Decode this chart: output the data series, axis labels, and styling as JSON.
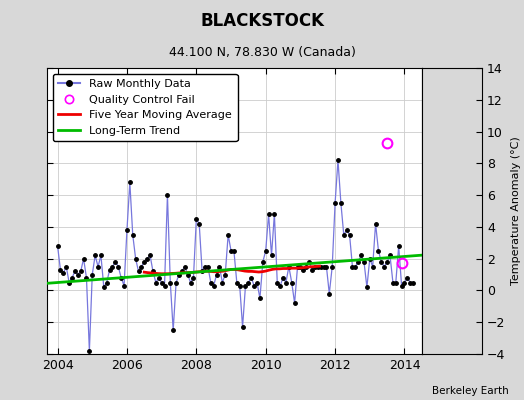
{
  "title": "BLACKSTOCK",
  "subtitle": "44.100 N, 78.830 W (Canada)",
  "ylabel": "Temperature Anomaly (°C)",
  "attribution": "Berkeley Earth",
  "ylim": [
    -4,
    14
  ],
  "xlim": [
    2003.7,
    2014.5
  ],
  "yticks": [
    -4,
    -2,
    0,
    2,
    4,
    6,
    8,
    10,
    12,
    14
  ],
  "xticks": [
    2004,
    2006,
    2008,
    2010,
    2012,
    2014
  ],
  "bg_color": "#d8d8d8",
  "plot_bg_color": "#ffffff",
  "right_strip_color": "#d8d8d8",
  "raw_data": [
    [
      2004.0,
      2.8
    ],
    [
      2004.083,
      1.3
    ],
    [
      2004.167,
      1.1
    ],
    [
      2004.25,
      1.5
    ],
    [
      2004.333,
      0.5
    ],
    [
      2004.417,
      0.8
    ],
    [
      2004.5,
      1.2
    ],
    [
      2004.583,
      1.0
    ],
    [
      2004.667,
      1.2
    ],
    [
      2004.75,
      2.0
    ],
    [
      2004.833,
      0.8
    ],
    [
      2004.917,
      -3.8
    ],
    [
      2005.0,
      1.0
    ],
    [
      2005.083,
      2.2
    ],
    [
      2005.167,
      1.5
    ],
    [
      2005.25,
      2.2
    ],
    [
      2005.333,
      0.2
    ],
    [
      2005.417,
      0.5
    ],
    [
      2005.5,
      1.3
    ],
    [
      2005.583,
      1.5
    ],
    [
      2005.667,
      1.8
    ],
    [
      2005.75,
      1.5
    ],
    [
      2005.833,
      0.8
    ],
    [
      2005.917,
      0.3
    ],
    [
      2006.0,
      3.8
    ],
    [
      2006.083,
      6.8
    ],
    [
      2006.167,
      3.5
    ],
    [
      2006.25,
      2.0
    ],
    [
      2006.333,
      1.2
    ],
    [
      2006.417,
      1.5
    ],
    [
      2006.5,
      1.8
    ],
    [
      2006.583,
      2.0
    ],
    [
      2006.667,
      2.2
    ],
    [
      2006.75,
      1.2
    ],
    [
      2006.833,
      0.5
    ],
    [
      2006.917,
      0.8
    ],
    [
      2007.0,
      0.5
    ],
    [
      2007.083,
      0.3
    ],
    [
      2007.167,
      6.0
    ],
    [
      2007.25,
      0.5
    ],
    [
      2007.333,
      -2.5
    ],
    [
      2007.417,
      0.5
    ],
    [
      2007.5,
      1.0
    ],
    [
      2007.583,
      1.2
    ],
    [
      2007.667,
      1.5
    ],
    [
      2007.75,
      1.0
    ],
    [
      2007.833,
      0.5
    ],
    [
      2007.917,
      0.8
    ],
    [
      2008.0,
      4.5
    ],
    [
      2008.083,
      4.2
    ],
    [
      2008.167,
      1.2
    ],
    [
      2008.25,
      1.5
    ],
    [
      2008.333,
      1.5
    ],
    [
      2008.417,
      0.5
    ],
    [
      2008.5,
      0.3
    ],
    [
      2008.583,
      1.0
    ],
    [
      2008.667,
      1.5
    ],
    [
      2008.75,
      0.5
    ],
    [
      2008.833,
      1.0
    ],
    [
      2008.917,
      3.5
    ],
    [
      2009.0,
      2.5
    ],
    [
      2009.083,
      2.5
    ],
    [
      2009.167,
      0.5
    ],
    [
      2009.25,
      0.3
    ],
    [
      2009.333,
      -2.3
    ],
    [
      2009.417,
      0.3
    ],
    [
      2009.5,
      0.5
    ],
    [
      2009.583,
      0.8
    ],
    [
      2009.667,
      0.3
    ],
    [
      2009.75,
      0.5
    ],
    [
      2009.833,
      -0.5
    ],
    [
      2009.917,
      1.8
    ],
    [
      2010.0,
      2.5
    ],
    [
      2010.083,
      4.8
    ],
    [
      2010.167,
      2.2
    ],
    [
      2010.25,
      4.8
    ],
    [
      2010.333,
      0.5
    ],
    [
      2010.417,
      0.3
    ],
    [
      2010.5,
      0.8
    ],
    [
      2010.583,
      0.5
    ],
    [
      2010.667,
      1.5
    ],
    [
      2010.75,
      0.5
    ],
    [
      2010.833,
      -0.8
    ],
    [
      2010.917,
      1.5
    ],
    [
      2011.0,
      1.5
    ],
    [
      2011.083,
      1.3
    ],
    [
      2011.167,
      1.5
    ],
    [
      2011.25,
      1.8
    ],
    [
      2011.333,
      1.3
    ],
    [
      2011.417,
      1.5
    ],
    [
      2011.5,
      1.5
    ],
    [
      2011.583,
      1.5
    ],
    [
      2011.667,
      1.5
    ],
    [
      2011.75,
      1.5
    ],
    [
      2011.833,
      -0.2
    ],
    [
      2011.917,
      1.5
    ],
    [
      2012.0,
      5.5
    ],
    [
      2012.083,
      8.2
    ],
    [
      2012.167,
      5.5
    ],
    [
      2012.25,
      3.5
    ],
    [
      2012.333,
      3.8
    ],
    [
      2012.417,
      3.5
    ],
    [
      2012.5,
      1.5
    ],
    [
      2012.583,
      1.5
    ],
    [
      2012.667,
      1.8
    ],
    [
      2012.75,
      2.2
    ],
    [
      2012.833,
      1.8
    ],
    [
      2012.917,
      0.2
    ],
    [
      2013.0,
      2.0
    ],
    [
      2013.083,
      1.5
    ],
    [
      2013.167,
      4.2
    ],
    [
      2013.25,
      2.5
    ],
    [
      2013.333,
      1.8
    ],
    [
      2013.417,
      1.5
    ],
    [
      2013.5,
      1.8
    ],
    [
      2013.583,
      2.2
    ],
    [
      2013.667,
      0.5
    ],
    [
      2013.75,
      0.5
    ],
    [
      2013.833,
      2.8
    ],
    [
      2013.917,
      0.3
    ],
    [
      2014.0,
      0.5
    ],
    [
      2014.083,
      0.8
    ],
    [
      2014.167,
      0.5
    ],
    [
      2014.25,
      0.5
    ]
  ],
  "qc_fail_points": [
    [
      2013.5,
      9.3
    ],
    [
      2013.917,
      1.7
    ]
  ],
  "moving_avg": [
    [
      2006.5,
      1.15
    ],
    [
      2006.6,
      1.12
    ],
    [
      2006.7,
      1.1
    ],
    [
      2006.8,
      1.08
    ],
    [
      2006.9,
      1.06
    ],
    [
      2007.0,
      1.05
    ],
    [
      2007.1,
      1.05
    ],
    [
      2007.2,
      1.05
    ],
    [
      2007.3,
      1.07
    ],
    [
      2007.4,
      1.08
    ],
    [
      2007.5,
      1.1
    ],
    [
      2007.6,
      1.11
    ],
    [
      2007.7,
      1.12
    ],
    [
      2007.8,
      1.13
    ],
    [
      2007.9,
      1.14
    ],
    [
      2008.0,
      1.16
    ],
    [
      2008.1,
      1.18
    ],
    [
      2008.2,
      1.2
    ],
    [
      2008.3,
      1.21
    ],
    [
      2008.4,
      1.2
    ],
    [
      2008.5,
      1.18
    ],
    [
      2008.6,
      1.18
    ],
    [
      2008.7,
      1.2
    ],
    [
      2008.8,
      1.22
    ],
    [
      2008.9,
      1.28
    ],
    [
      2009.0,
      1.32
    ],
    [
      2009.1,
      1.32
    ],
    [
      2009.2,
      1.3
    ],
    [
      2009.3,
      1.26
    ],
    [
      2009.4,
      1.22
    ],
    [
      2009.5,
      1.2
    ],
    [
      2009.6,
      1.2
    ],
    [
      2009.7,
      1.18
    ],
    [
      2009.8,
      1.16
    ],
    [
      2009.9,
      1.18
    ],
    [
      2010.0,
      1.22
    ],
    [
      2010.1,
      1.28
    ],
    [
      2010.2,
      1.33
    ],
    [
      2010.3,
      1.36
    ],
    [
      2010.4,
      1.36
    ],
    [
      2010.5,
      1.38
    ],
    [
      2010.6,
      1.38
    ],
    [
      2010.7,
      1.4
    ],
    [
      2010.8,
      1.4
    ],
    [
      2010.9,
      1.4
    ],
    [
      2011.0,
      1.42
    ],
    [
      2011.1,
      1.44
    ],
    [
      2011.2,
      1.47
    ],
    [
      2011.3,
      1.49
    ],
    [
      2011.4,
      1.5
    ],
    [
      2011.5,
      1.52
    ],
    [
      2011.55,
      1.53
    ]
  ],
  "trend_line": [
    [
      2003.7,
      0.45
    ],
    [
      2014.5,
      2.22
    ]
  ],
  "raw_line_color": "#7777dd",
  "dot_color": "#000000",
  "mavg_color": "#ee0000",
  "trend_color": "#00bb00",
  "qc_color": "#ff00ff",
  "grid_color": "#cccccc",
  "tick_label_size": 9,
  "title_fontsize": 12,
  "subtitle_fontsize": 9,
  "legend_fontsize": 8,
  "ylabel_fontsize": 8
}
